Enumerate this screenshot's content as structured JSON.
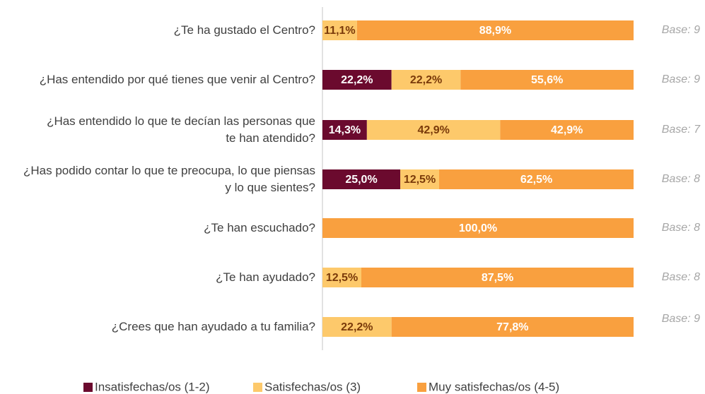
{
  "chart_data": {
    "type": "bar",
    "orientation": "horizontal",
    "stacked": true,
    "categories": [
      "¿Te ha gustado el Centro?",
      "¿Has entendido por qué tienes que venir al Centro?",
      "¿Has entendido lo que te decían las personas que te han atendido?",
      "¿Has podido contar lo que te preocupa, lo que piensas y lo que sientes?",
      "¿Te han escuchado?",
      "¿Te han ayudado?",
      "¿Crees que han ayudado a tu familia?"
    ],
    "series": [
      {
        "name": "Insatisfechas/os (1-2)",
        "color": "#6b0a2e",
        "values": [
          null,
          22.2,
          14.3,
          25.0,
          null,
          null,
          null
        ],
        "value_labels": [
          null,
          "22,2%",
          "14,3%",
          "25,0%",
          null,
          null,
          null
        ]
      },
      {
        "name": "Satisfechas/os (3)",
        "color": "#fdc96b",
        "values": [
          11.1,
          22.2,
          42.9,
          12.5,
          null,
          12.5,
          22.2
        ],
        "value_labels": [
          "11,1%",
          "22,2%",
          "42,9%",
          "12,5%",
          null,
          "12,5%",
          "22,2%"
        ]
      },
      {
        "name": "Muy satisfechas/os (4-5)",
        "color": "#f9a03f",
        "values": [
          88.9,
          55.6,
          42.9,
          62.5,
          100.0,
          87.5,
          77.8
        ],
        "value_labels": [
          "88,9%",
          "55,6%",
          "42,9%",
          "62,5%",
          "100,0%",
          "87,5%",
          "77,8%"
        ]
      }
    ],
    "annotations": [
      "Base: 9",
      "Base: 9",
      "Base: 7",
      "Base: 8",
      "Base: 8",
      "Base: 8",
      "Base: 9"
    ],
    "legend": "bottom"
  }
}
